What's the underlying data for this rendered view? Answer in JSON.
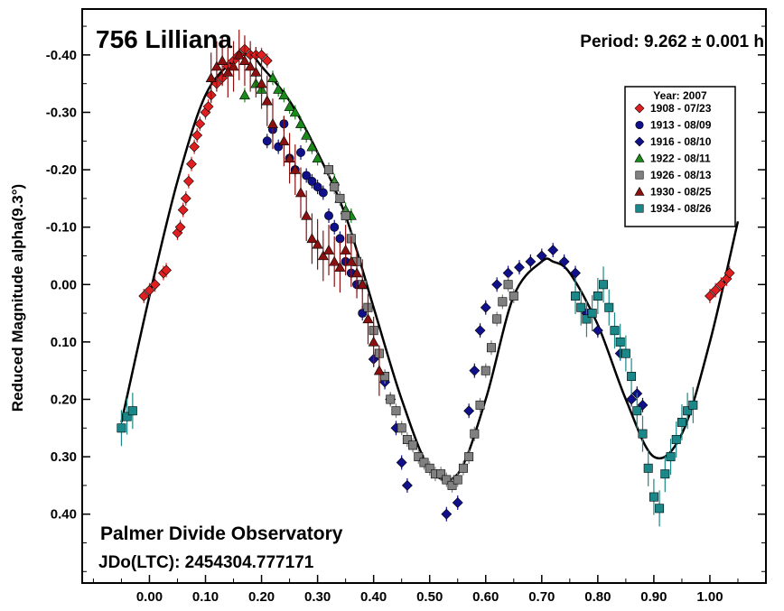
{
  "chart_data": {
    "type": "scatter",
    "title": "756 Lilliana",
    "period_label": "Period: 9.262 ± 0.001 h",
    "ylabel": "Reduced Magnitude alpha(9.3°)",
    "xlabel": "",
    "observatory": "Palmer Divide Observatory",
    "jd_label": "JDo(LTC): 2454304.777171",
    "xlim": [
      -0.12,
      1.1
    ],
    "ylim": [
      0.52,
      -0.48
    ],
    "x_ticks": [
      "0.00",
      "0.10",
      "0.20",
      "0.30",
      "0.40",
      "0.50",
      "0.60",
      "0.70",
      "0.80",
      "0.90",
      "1.00"
    ],
    "y_ticks": [
      "-0.40",
      "-0.30",
      "-0.20",
      "-0.10",
      "0.00",
      "0.10",
      "0.20",
      "0.30",
      "0.40"
    ],
    "y_tick_values": [
      -0.4,
      -0.3,
      -0.2,
      -0.1,
      0.0,
      0.1,
      0.2,
      0.3,
      0.4
    ],
    "x_tick_values": [
      0.0,
      0.1,
      0.2,
      0.3,
      0.4,
      0.5,
      0.6,
      0.7,
      0.8,
      0.9,
      1.0
    ],
    "legend_title": "Year: 2007",
    "legend_position": "top-right",
    "grid": false,
    "series": [
      {
        "name": "1908 - 07/23",
        "marker": "diamond",
        "color": "#e02020",
        "points": [
          [
            -0.01,
            0.02
          ],
          [
            0.0,
            0.01
          ],
          [
            0.01,
            0.0
          ],
          [
            0.025,
            -0.02
          ],
          [
            0.03,
            -0.025
          ],
          [
            0.05,
            -0.09
          ],
          [
            0.055,
            -0.1
          ],
          [
            0.06,
            -0.13
          ],
          [
            0.065,
            -0.15
          ],
          [
            0.07,
            -0.18
          ],
          [
            0.075,
            -0.21
          ],
          [
            0.08,
            -0.24
          ],
          [
            0.085,
            -0.26
          ],
          [
            0.09,
            -0.28
          ],
          [
            0.1,
            -0.3
          ],
          [
            0.105,
            -0.31
          ],
          [
            0.11,
            -0.33
          ],
          [
            0.12,
            -0.35
          ],
          [
            0.13,
            -0.36
          ],
          [
            0.14,
            -0.38
          ],
          [
            0.15,
            -0.39
          ],
          [
            0.16,
            -0.4
          ],
          [
            0.17,
            -0.41
          ],
          [
            0.18,
            -0.4
          ],
          [
            0.19,
            -0.4
          ],
          [
            0.2,
            -0.4
          ],
          [
            0.21,
            -0.39
          ],
          [
            1.0,
            0.02
          ],
          [
            1.01,
            0.01
          ],
          [
            1.02,
            0.0
          ],
          [
            1.03,
            -0.01
          ],
          [
            1.035,
            -0.02
          ]
        ]
      },
      {
        "name": "1913 - 08/09",
        "marker": "circle",
        "color": "#10108a",
        "points": [
          [
            0.21,
            -0.25
          ],
          [
            0.22,
            -0.27
          ],
          [
            0.23,
            -0.24
          ],
          [
            0.24,
            -0.28
          ],
          [
            0.25,
            -0.22
          ],
          [
            0.26,
            -0.2
          ],
          [
            0.27,
            -0.23
          ],
          [
            0.28,
            -0.19
          ],
          [
            0.29,
            -0.18
          ],
          [
            0.3,
            -0.17
          ],
          [
            0.31,
            -0.16
          ],
          [
            0.32,
            -0.12
          ],
          [
            0.33,
            -0.1
          ],
          [
            0.34,
            -0.08
          ],
          [
            0.35,
            -0.04
          ],
          [
            0.36,
            -0.02
          ],
          [
            0.37,
            0.0
          ],
          [
            0.38,
            0.05
          ]
        ]
      },
      {
        "name": "1916 - 08/10",
        "marker": "diamond",
        "color": "#10108a",
        "points": [
          [
            0.4,
            0.13
          ],
          [
            0.42,
            0.17
          ],
          [
            0.43,
            0.2
          ],
          [
            0.44,
            0.25
          ],
          [
            0.45,
            0.31
          ],
          [
            0.46,
            0.35
          ],
          [
            0.53,
            0.4
          ],
          [
            0.55,
            0.38
          ],
          [
            0.57,
            0.22
          ],
          [
            0.58,
            0.15
          ],
          [
            0.59,
            0.08
          ],
          [
            0.6,
            0.04
          ],
          [
            0.62,
            0.0
          ],
          [
            0.64,
            -0.02
          ],
          [
            0.66,
            -0.03
          ],
          [
            0.68,
            -0.04
          ],
          [
            0.7,
            -0.05
          ],
          [
            0.72,
            -0.06
          ],
          [
            0.74,
            -0.04
          ],
          [
            0.76,
            -0.02
          ],
          [
            0.78,
            0.05
          ],
          [
            0.8,
            0.08
          ],
          [
            0.84,
            0.12
          ],
          [
            0.86,
            0.2
          ],
          [
            0.87,
            0.19
          ],
          [
            0.88,
            0.21
          ]
        ]
      },
      {
        "name": "1922 - 08/11",
        "marker": "triangle",
        "color": "#1a8a1a",
        "points": [
          [
            0.17,
            -0.33
          ],
          [
            0.19,
            -0.35
          ],
          [
            0.2,
            -0.34
          ],
          [
            0.21,
            -0.32
          ],
          [
            0.22,
            -0.36
          ],
          [
            0.23,
            -0.34
          ],
          [
            0.24,
            -0.33
          ],
          [
            0.25,
            -0.31
          ],
          [
            0.26,
            -0.3
          ],
          [
            0.27,
            -0.28
          ],
          [
            0.28,
            -0.26
          ],
          [
            0.29,
            -0.24
          ],
          [
            0.3,
            -0.22
          ],
          [
            0.32,
            -0.2
          ],
          [
            0.33,
            -0.18
          ],
          [
            0.34,
            -0.15
          ],
          [
            0.35,
            -0.13
          ],
          [
            0.36,
            -0.12
          ]
        ]
      },
      {
        "name": "1926 - 08/13",
        "marker": "square",
        "color": "#808080",
        "points": [
          [
            0.32,
            -0.2
          ],
          [
            0.33,
            -0.17
          ],
          [
            0.34,
            -0.15
          ],
          [
            0.35,
            -0.12
          ],
          [
            0.36,
            -0.08
          ],
          [
            0.37,
            -0.04
          ],
          [
            0.38,
            0.0
          ],
          [
            0.39,
            0.04
          ],
          [
            0.4,
            0.08
          ],
          [
            0.41,
            0.12
          ],
          [
            0.42,
            0.16
          ],
          [
            0.43,
            0.2
          ],
          [
            0.44,
            0.22
          ],
          [
            0.45,
            0.25
          ],
          [
            0.46,
            0.27
          ],
          [
            0.47,
            0.28
          ],
          [
            0.48,
            0.3
          ],
          [
            0.49,
            0.31
          ],
          [
            0.5,
            0.32
          ],
          [
            0.51,
            0.33
          ],
          [
            0.52,
            0.33
          ],
          [
            0.53,
            0.34
          ],
          [
            0.54,
            0.35
          ],
          [
            0.55,
            0.34
          ],
          [
            0.56,
            0.32
          ],
          [
            0.57,
            0.3
          ],
          [
            0.58,
            0.26
          ],
          [
            0.59,
            0.21
          ],
          [
            0.6,
            0.15
          ],
          [
            0.61,
            0.11
          ],
          [
            0.62,
            0.06
          ],
          [
            0.63,
            0.03
          ],
          [
            0.64,
            0.0
          ],
          [
            0.65,
            0.02
          ]
        ]
      },
      {
        "name": "1930 - 08/25",
        "marker": "triangle",
        "color": "#8b1010",
        "points": [
          [
            0.11,
            -0.36
          ],
          [
            0.12,
            -0.38
          ],
          [
            0.13,
            -0.39
          ],
          [
            0.14,
            -0.37
          ],
          [
            0.15,
            -0.38
          ],
          [
            0.16,
            -0.4
          ],
          [
            0.17,
            -0.39
          ],
          [
            0.18,
            -0.38
          ],
          [
            0.19,
            -0.37
          ],
          [
            0.2,
            -0.35
          ],
          [
            0.21,
            -0.32
          ],
          [
            0.22,
            -0.28
          ],
          [
            0.24,
            -0.25
          ],
          [
            0.25,
            -0.22
          ],
          [
            0.26,
            -0.2
          ],
          [
            0.27,
            -0.16
          ],
          [
            0.28,
            -0.12
          ],
          [
            0.29,
            -0.08
          ],
          [
            0.3,
            -0.07
          ],
          [
            0.31,
            -0.05
          ],
          [
            0.32,
            -0.06
          ],
          [
            0.33,
            -0.04
          ],
          [
            0.34,
            -0.03
          ],
          [
            0.35,
            -0.06
          ],
          [
            0.36,
            -0.04
          ],
          [
            0.37,
            -0.02
          ],
          [
            0.38,
            0.0
          ],
          [
            0.39,
            0.06
          ],
          [
            0.4,
            0.1
          ],
          [
            0.41,
            0.15
          ]
        ]
      },
      {
        "name": "1934 - 08/26",
        "marker": "square",
        "color": "#1a8888",
        "points": [
          [
            -0.05,
            0.25
          ],
          [
            -0.04,
            0.23
          ],
          [
            -0.03,
            0.22
          ],
          [
            0.76,
            0.02
          ],
          [
            0.77,
            0.04
          ],
          [
            0.78,
            0.06
          ],
          [
            0.79,
            0.05
          ],
          [
            0.8,
            0.02
          ],
          [
            0.81,
            0.0
          ],
          [
            0.82,
            0.04
          ],
          [
            0.83,
            0.08
          ],
          [
            0.84,
            0.1
          ],
          [
            0.85,
            0.12
          ],
          [
            0.86,
            0.16
          ],
          [
            0.87,
            0.22
          ],
          [
            0.88,
            0.26
          ],
          [
            0.89,
            0.32
          ],
          [
            0.9,
            0.37
          ],
          [
            0.91,
            0.39
          ],
          [
            0.92,
            0.33
          ],
          [
            0.93,
            0.3
          ],
          [
            0.94,
            0.27
          ],
          [
            0.95,
            0.24
          ],
          [
            0.96,
            0.22
          ],
          [
            0.97,
            0.21
          ]
        ]
      }
    ],
    "fit_curve": {
      "x": [
        -0.05,
        0.0,
        0.05,
        0.1,
        0.15,
        0.18,
        0.2,
        0.25,
        0.3,
        0.35,
        0.4,
        0.45,
        0.5,
        0.55,
        0.6,
        0.65,
        0.7,
        0.72,
        0.75,
        0.8,
        0.85,
        0.9,
        0.95,
        1.0,
        1.05
      ],
      "y": [
        0.24,
        0.02,
        -0.18,
        -0.33,
        -0.39,
        -0.4,
        -0.38,
        -0.32,
        -0.23,
        -0.12,
        0.04,
        0.2,
        0.32,
        0.33,
        0.2,
        0.02,
        -0.04,
        -0.04,
        -0.02,
        0.07,
        0.2,
        0.3,
        0.26,
        0.1,
        -0.11
      ]
    }
  }
}
